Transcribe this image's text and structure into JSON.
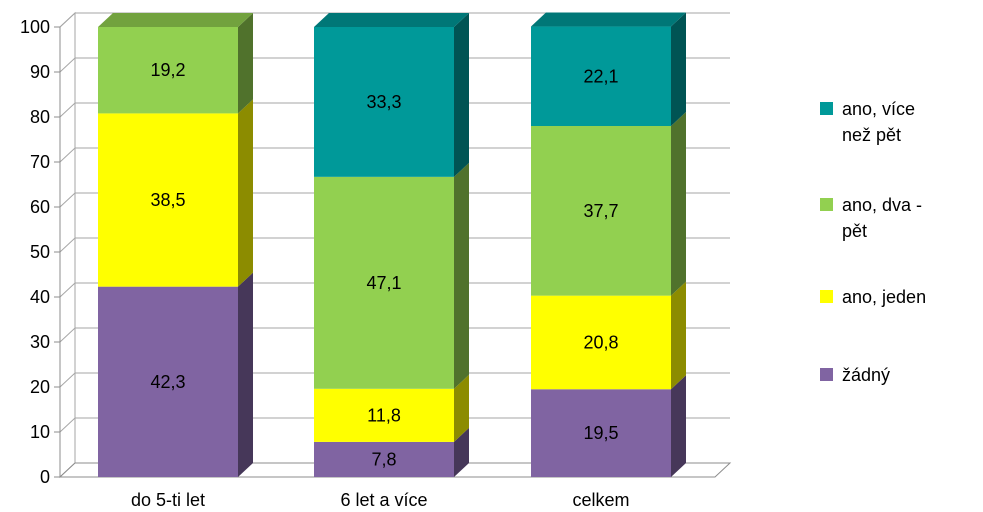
{
  "chart_data": {
    "type": "bar",
    "stacked": true,
    "three_d": true,
    "categories": [
      "do 5-ti let",
      "6 let a více",
      "celkem"
    ],
    "series": [
      {
        "name": "žádný",
        "values": [
          42.3,
          7.8,
          19.5
        ],
        "color": "#8064A2"
      },
      {
        "name": "ano, jeden",
        "values": [
          38.5,
          11.8,
          20.8
        ],
        "color": "#FFFF00"
      },
      {
        "name": "ano, dva - pět",
        "values": [
          19.2,
          47.1,
          37.7
        ],
        "color": "#92D050"
      },
      {
        "name": "ano, více než pět",
        "values": [
          0,
          33.3,
          22.1
        ],
        "color": "#009999"
      }
    ],
    "data_labels": [
      [
        "42,3",
        "7,8",
        "19,5"
      ],
      [
        "38,5",
        "11,8",
        "20,8"
      ],
      [
        "19,2",
        "47,1",
        "37,7"
      ],
      [
        "",
        "33,3",
        "22,1"
      ]
    ],
    "ylim": [
      0,
      100
    ],
    "yticks": [
      0,
      10,
      20,
      30,
      40,
      50,
      60,
      70,
      80,
      90,
      100
    ],
    "grid": true,
    "legend_position": "right",
    "title": "",
    "xlabel": "",
    "ylabel": ""
  },
  "legend": {
    "items": [
      {
        "label_line1": "ano, více",
        "label_line2": "než pět",
        "color": "#009999"
      },
      {
        "label_line1": "ano, dva -",
        "label_line2": "pět",
        "color": "#92D050"
      },
      {
        "label_line1": "ano, jeden",
        "label_line2": "",
        "color": "#FFFF00"
      },
      {
        "label_line1": "žádný",
        "label_line2": "",
        "color": "#8064A2"
      }
    ]
  }
}
